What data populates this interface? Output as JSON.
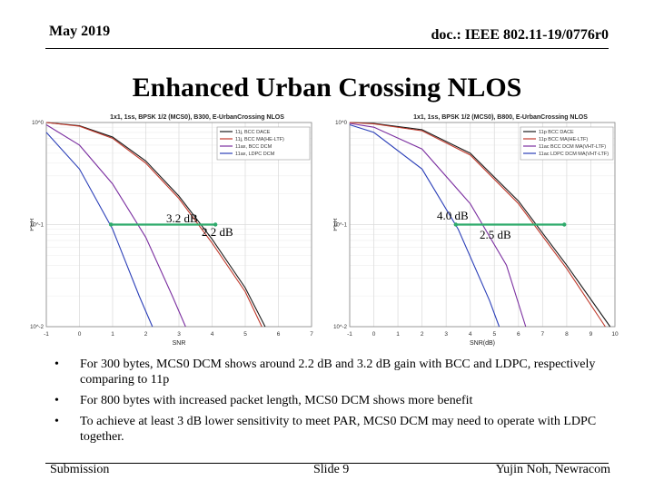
{
  "header": {
    "date": "May 2019",
    "doc": "doc.: IEEE 802.11-19/0776r0"
  },
  "title": "Enhanced Urban Crossing NLOS",
  "chart_data": [
    {
      "type": "line",
      "title": "1x1, 1ss, BPSK 1/2 (MCS0), B300, E-UrbanCrossing NLOS",
      "xlabel": "SNR",
      "ylabel": "PER",
      "xlim": [
        -1,
        7
      ],
      "ylim": [
        0.01,
        1
      ],
      "yscale": "log",
      "x_ticks": [
        "-1",
        "0",
        "1",
        "2",
        "3",
        "4",
        "5",
        "6",
        "7"
      ],
      "y_ticks": [
        "10^0",
        "10^-1",
        "10^-2"
      ],
      "series": [
        {
          "name": "11j, BCC DACE",
          "color": "#1a1a1a",
          "x": [
            -1,
            0,
            1,
            2,
            3,
            4,
            5,
            5.6
          ],
          "y": [
            1,
            0.93,
            0.72,
            0.42,
            0.19,
            0.072,
            0.024,
            0.01
          ]
        },
        {
          "name": "11j, BCC MA(HE-LTF)",
          "color": "#c0392b",
          "x": [
            -1,
            0,
            1,
            2,
            3,
            4,
            5,
            5.5
          ],
          "y": [
            1,
            0.92,
            0.7,
            0.4,
            0.18,
            0.066,
            0.022,
            0.01
          ]
        },
        {
          "name": "11ax, BCC DCM",
          "color": "#7b2fa0",
          "x": [
            -1,
            0,
            1,
            2,
            2.8,
            3.2
          ],
          "y": [
            0.95,
            0.6,
            0.25,
            0.075,
            0.02,
            0.01
          ]
        },
        {
          "name": "11ax, LDPC DCM",
          "color": "#2b3fb8",
          "x": [
            -1,
            0,
            1,
            1.8,
            2.2
          ],
          "y": [
            0.8,
            0.35,
            0.09,
            0.02,
            0.01
          ]
        }
      ]
    },
    {
      "type": "line",
      "title": "1x1, 1ss, BPSK 1/2 (MCS0), B800, E-UrbanCrossing NLOS",
      "xlabel": "SNR(dB)",
      "ylabel": "PER",
      "xlim": [
        -1,
        10
      ],
      "ylim": [
        0.01,
        1
      ],
      "yscale": "log",
      "x_ticks": [
        "-1",
        "0",
        "1",
        "2",
        "3",
        "4",
        "5",
        "6",
        "7",
        "8",
        "9",
        "10"
      ],
      "y_ticks": [
        "10^0",
        "10^-1",
        "10^-2"
      ],
      "series": [
        {
          "name": "11p BCC DACE",
          "color": "#1a1a1a",
          "x": [
            -1,
            0,
            2,
            4,
            6,
            8,
            9.8
          ],
          "y": [
            1,
            0.98,
            0.85,
            0.5,
            0.17,
            0.04,
            0.01
          ]
        },
        {
          "name": "11p BCC MA(HE-LTF)",
          "color": "#c0392b",
          "x": [
            -1,
            0,
            2,
            4,
            6,
            8,
            9.6
          ],
          "y": [
            1,
            0.97,
            0.83,
            0.48,
            0.16,
            0.037,
            0.01
          ]
        },
        {
          "name": "11ac BCC DCM MA(VHT-LTF)",
          "color": "#7b2fa0",
          "x": [
            -1,
            0,
            2,
            4,
            5.5,
            6.3
          ],
          "y": [
            0.98,
            0.9,
            0.55,
            0.16,
            0.04,
            0.01
          ]
        },
        {
          "name": "11ac LDPC DCM MA(VHT-LTF)",
          "color": "#2b3fb8",
          "x": [
            -1,
            0,
            2,
            3.5,
            4.8,
            5.2
          ],
          "y": [
            0.95,
            0.8,
            0.35,
            0.09,
            0.018,
            0.01
          ]
        }
      ]
    }
  ],
  "annotations": {
    "left_gain_ldpc": "3.2 dB",
    "left_gain_bcc": "2.2 dB",
    "right_gain_bcc": "4.0 dB",
    "right_gain_ldpc": "2.5 dB"
  },
  "bullets": [
    {
      "marker": "•",
      "text": "For 300 bytes, MCS0 DCM shows around 2.2 dB and 3.2 dB gain with BCC and LDPC, respectively comparing to 11p"
    },
    {
      "marker": "•",
      "text": "For 800 bytes with increased packet length, MCS0 DCM shows more benefit"
    },
    {
      "marker": "•",
      "text": "To achieve at least 3 dB lower sensitivity to meet PAR, MCS0 DCM may need to operate with LDPC together."
    }
  ],
  "footer": {
    "left": "Submission",
    "center": "Slide 9",
    "right": "Yujin Noh, Newracom"
  },
  "colors": {
    "gain_arrow": "#2eaa6b"
  }
}
